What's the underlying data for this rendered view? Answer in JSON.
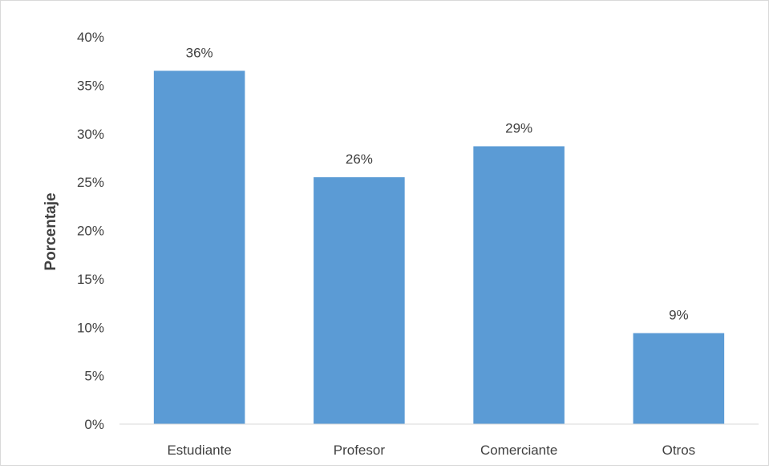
{
  "chart_data": {
    "type": "bar",
    "categories": [
      "Estudiante",
      "Profesor",
      "Comerciante",
      "Otros"
    ],
    "values": [
      36.5,
      25.5,
      28.7,
      9.4
    ],
    "data_labels": [
      "36%",
      "26%",
      "29%",
      "9%"
    ],
    "title": "",
    "xlabel": "",
    "ylabel": "Porcentaje",
    "ylim": [
      0,
      40
    ],
    "yticks": [
      0,
      5,
      10,
      15,
      20,
      25,
      30,
      35,
      40
    ],
    "ytick_labels": [
      "0%",
      "5%",
      "10%",
      "15%",
      "20%",
      "25%",
      "30%",
      "35%",
      "40%"
    ],
    "grid": false,
    "legend": "none",
    "bar_color": "#5b9bd5",
    "axis_color": "#d9d9d9",
    "text_color": "#404040"
  }
}
